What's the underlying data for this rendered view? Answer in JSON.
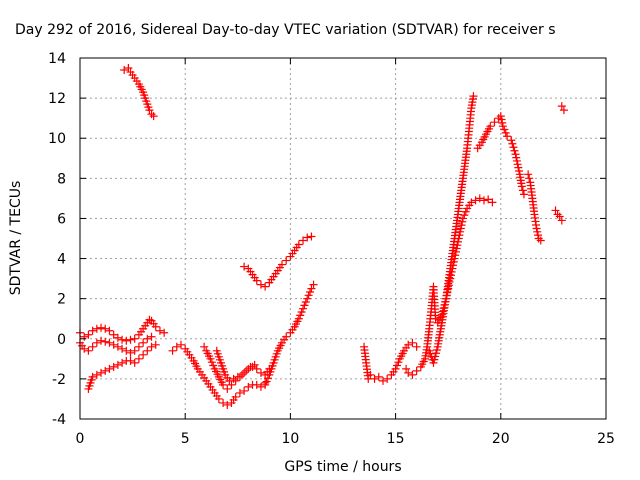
{
  "chart_data": {
    "type": "scatter",
    "title": "Day 292 of 2016, Sidereal Day-to-day VTEC variation (SDTVAR) for receiver s",
    "xlabel": "GPS time / hours",
    "ylabel": "SDTVAR / TECUs",
    "xlim": [
      0,
      25
    ],
    "ylim": [
      -4,
      14
    ],
    "x_ticks": [
      "0",
      "5",
      "10",
      "15",
      "20",
      "25"
    ],
    "y_ticks": [
      "-4",
      "-2",
      "0",
      "2",
      "4",
      "6",
      "8",
      "10",
      "12",
      "14"
    ],
    "x_tick_values": [
      0,
      5,
      10,
      15,
      20,
      25
    ],
    "y_tick_values": [
      -4,
      -2,
      0,
      2,
      4,
      6,
      8,
      10,
      12,
      14
    ],
    "grid": true,
    "marker": "+",
    "color": "#ff0000",
    "series": [
      {
        "values": [
          [
            0.0,
            0.3
          ],
          [
            0.2,
            0.1
          ],
          [
            0.4,
            0.2
          ],
          [
            0.6,
            0.4
          ],
          [
            0.8,
            0.5
          ],
          [
            1.0,
            0.55
          ],
          [
            1.2,
            0.5
          ],
          [
            1.4,
            0.4
          ],
          [
            1.6,
            0.2
          ],
          [
            1.8,
            0.05
          ],
          [
            2.0,
            -0.05
          ],
          [
            2.2,
            -0.1
          ],
          [
            2.4,
            -0.05
          ],
          [
            2.6,
            0.0
          ],
          [
            2.8,
            0.2
          ],
          [
            3.0,
            0.5
          ],
          [
            3.2,
            0.8
          ],
          [
            3.3,
            0.95
          ],
          [
            3.4,
            0.9
          ],
          [
            3.6,
            0.6
          ],
          [
            3.8,
            0.4
          ],
          [
            4.0,
            0.3
          ]
        ]
      },
      {
        "values": [
          [
            0.0,
            -0.2
          ],
          [
            0.2,
            -0.5
          ],
          [
            0.4,
            -0.6
          ],
          [
            0.6,
            -0.4
          ],
          [
            0.8,
            -0.2
          ],
          [
            1.0,
            -0.1
          ],
          [
            1.2,
            -0.15
          ],
          [
            1.4,
            -0.2
          ],
          [
            1.6,
            -0.3
          ],
          [
            1.8,
            -0.4
          ],
          [
            2.0,
            -0.5
          ],
          [
            2.2,
            -0.6
          ],
          [
            2.4,
            -0.7
          ],
          [
            2.6,
            -0.6
          ],
          [
            2.8,
            -0.4
          ],
          [
            3.0,
            -0.2
          ],
          [
            3.2,
            0.0
          ],
          [
            3.4,
            0.1
          ]
        ]
      },
      {
        "values": [
          [
            0.4,
            -2.5
          ],
          [
            0.5,
            -2.2
          ],
          [
            0.6,
            -1.9
          ],
          [
            0.8,
            -1.8
          ],
          [
            1.0,
            -1.7
          ],
          [
            1.2,
            -1.6
          ],
          [
            1.4,
            -1.5
          ],
          [
            1.6,
            -1.4
          ],
          [
            1.8,
            -1.3
          ],
          [
            2.0,
            -1.2
          ],
          [
            2.2,
            -1.1
          ],
          [
            2.4,
            -1.1
          ],
          [
            2.6,
            -1.2
          ],
          [
            2.8,
            -1.0
          ],
          [
            3.0,
            -0.8
          ],
          [
            3.2,
            -0.6
          ],
          [
            3.4,
            -0.4
          ],
          [
            3.6,
            -0.3
          ]
        ]
      },
      {
        "values": [
          [
            2.1,
            13.4
          ],
          [
            2.3,
            13.5
          ],
          [
            2.4,
            13.3
          ],
          [
            2.6,
            13.0
          ],
          [
            2.8,
            12.7
          ],
          [
            3.0,
            12.3
          ],
          [
            3.1,
            12.0
          ],
          [
            3.2,
            11.7
          ],
          [
            3.3,
            11.4
          ],
          [
            3.4,
            11.2
          ],
          [
            3.5,
            11.1
          ]
        ]
      },
      {
        "values": [
          [
            4.4,
            -0.6
          ],
          [
            4.6,
            -0.4
          ],
          [
            4.8,
            -0.3
          ],
          [
            5.0,
            -0.5
          ],
          [
            5.2,
            -0.8
          ],
          [
            5.4,
            -1.1
          ],
          [
            5.6,
            -1.5
          ],
          [
            5.8,
            -1.8
          ],
          [
            6.0,
            -2.1
          ],
          [
            6.2,
            -2.4
          ],
          [
            6.4,
            -2.7
          ],
          [
            6.6,
            -3.0
          ],
          [
            6.8,
            -3.2
          ],
          [
            7.0,
            -3.3
          ],
          [
            7.2,
            -3.2
          ],
          [
            7.4,
            -2.9
          ],
          [
            7.6,
            -2.7
          ],
          [
            7.8,
            -2.6
          ],
          [
            8.0,
            -2.4
          ],
          [
            8.2,
            -2.3
          ],
          [
            8.4,
            -2.3
          ],
          [
            8.6,
            -2.4
          ],
          [
            8.8,
            -2.2
          ]
        ]
      },
      {
        "values": [
          [
            5.9,
            -0.4
          ],
          [
            6.0,
            -0.6
          ],
          [
            6.2,
            -1.0
          ],
          [
            6.4,
            -1.5
          ],
          [
            6.6,
            -1.9
          ],
          [
            6.8,
            -2.3
          ],
          [
            7.0,
            -2.5
          ],
          [
            7.2,
            -2.3
          ],
          [
            7.4,
            -2.1
          ],
          [
            7.6,
            -1.9
          ],
          [
            7.8,
            -1.7
          ],
          [
            8.0,
            -1.5
          ],
          [
            8.2,
            -1.4
          ],
          [
            8.4,
            -1.5
          ],
          [
            8.6,
            -1.7
          ],
          [
            8.8,
            -1.8
          ],
          [
            9.0,
            -1.5
          ]
        ]
      },
      {
        "values": [
          [
            6.5,
            -0.6
          ],
          [
            6.7,
            -1.2
          ],
          [
            6.9,
            -1.8
          ],
          [
            7.1,
            -2.1
          ],
          [
            7.3,
            -2.0
          ],
          [
            7.5,
            -1.9
          ],
          [
            7.7,
            -1.8
          ],
          [
            7.9,
            -1.6
          ],
          [
            8.1,
            -1.4
          ],
          [
            8.3,
            -1.3
          ]
        ]
      },
      {
        "values": [
          [
            7.8,
            3.6
          ],
          [
            8.0,
            3.5
          ],
          [
            8.2,
            3.2
          ],
          [
            8.4,
            2.9
          ],
          [
            8.6,
            2.7
          ],
          [
            8.8,
            2.6
          ],
          [
            9.0,
            2.8
          ],
          [
            9.2,
            3.1
          ],
          [
            9.4,
            3.4
          ],
          [
            9.6,
            3.7
          ],
          [
            9.8,
            3.9
          ],
          [
            10.0,
            4.1
          ],
          [
            10.2,
            4.4
          ],
          [
            10.4,
            4.7
          ],
          [
            10.6,
            4.9
          ],
          [
            10.8,
            5.05
          ],
          [
            11.0,
            5.1
          ]
        ]
      },
      {
        "values": [
          [
            8.8,
            -2.3
          ],
          [
            9.0,
            -1.8
          ],
          [
            9.2,
            -1.2
          ],
          [
            9.4,
            -0.6
          ],
          [
            9.6,
            -0.2
          ],
          [
            9.8,
            0.1
          ],
          [
            10.0,
            0.3
          ],
          [
            10.2,
            0.6
          ],
          [
            10.4,
            1.0
          ],
          [
            10.6,
            1.5
          ],
          [
            10.8,
            2.0
          ],
          [
            11.0,
            2.5
          ],
          [
            11.1,
            2.7
          ]
        ]
      },
      {
        "values": [
          [
            13.5,
            -0.4
          ],
          [
            13.6,
            -1.2
          ],
          [
            13.7,
            -2.0
          ],
          [
            13.8,
            -1.8
          ],
          [
            14.0,
            -2.0
          ],
          [
            14.2,
            -1.9
          ],
          [
            14.4,
            -2.1
          ],
          [
            14.6,
            -2.0
          ],
          [
            14.8,
            -1.8
          ],
          [
            15.0,
            -1.5
          ],
          [
            15.2,
            -1.0
          ],
          [
            15.4,
            -0.6
          ],
          [
            15.6,
            -0.3
          ],
          [
            15.8,
            -0.2
          ],
          [
            16.0,
            -0.4
          ]
        ]
      },
      {
        "values": [
          [
            15.5,
            -1.5
          ],
          [
            15.6,
            -1.7
          ],
          [
            15.8,
            -1.8
          ],
          [
            16.0,
            -1.6
          ],
          [
            16.2,
            -1.4
          ],
          [
            16.4,
            -1.0
          ],
          [
            16.5,
            -0.4
          ],
          [
            16.6,
            0.5
          ],
          [
            16.7,
            1.5
          ],
          [
            16.8,
            2.6
          ],
          [
            16.9,
            1.0
          ],
          [
            17.0,
            0.8
          ],
          [
            17.2,
            1.2
          ],
          [
            17.4,
            2.0
          ],
          [
            17.6,
            3.0
          ],
          [
            17.8,
            4.0
          ],
          [
            18.0,
            5.0
          ],
          [
            18.2,
            6.0
          ],
          [
            18.4,
            6.5
          ],
          [
            18.6,
            6.8
          ],
          [
            18.8,
            6.9
          ],
          [
            19.0,
            7.0
          ],
          [
            19.2,
            6.9
          ],
          [
            19.4,
            6.95
          ],
          [
            19.6,
            6.8
          ]
        ]
      },
      {
        "values": [
          [
            16.6,
            -0.6
          ],
          [
            16.8,
            -1.2
          ],
          [
            17.0,
            -0.4
          ],
          [
            17.2,
            0.8
          ],
          [
            17.4,
            2.0
          ],
          [
            17.6,
            3.5
          ],
          [
            17.8,
            5.0
          ],
          [
            18.0,
            6.5
          ],
          [
            18.2,
            8.0
          ],
          [
            18.4,
            9.5
          ],
          [
            18.5,
            10.5
          ],
          [
            18.6,
            11.5
          ],
          [
            18.7,
            12.1
          ]
        ]
      },
      {
        "values": [
          [
            18.9,
            9.5
          ],
          [
            19.1,
            9.8
          ],
          [
            19.3,
            10.2
          ],
          [
            19.5,
            10.6
          ],
          [
            19.7,
            10.8
          ],
          [
            19.9,
            11.0
          ],
          [
            20.0,
            11.1
          ],
          [
            20.1,
            10.6
          ],
          [
            20.3,
            10.1
          ],
          [
            20.5,
            9.9
          ],
          [
            20.7,
            9.2
          ],
          [
            20.9,
            8.2
          ],
          [
            21.0,
            7.6
          ],
          [
            21.1,
            7.2
          ]
        ]
      },
      {
        "values": [
          [
            21.3,
            8.2
          ],
          [
            21.4,
            7.8
          ],
          [
            21.5,
            7.0
          ],
          [
            21.6,
            6.2
          ],
          [
            21.7,
            5.5
          ],
          [
            21.8,
            5.0
          ],
          [
            21.9,
            4.9
          ]
        ]
      },
      {
        "values": [
          [
            22.6,
            6.4
          ],
          [
            22.7,
            6.2
          ],
          [
            22.8,
            6.1
          ],
          [
            22.9,
            5.9
          ]
        ]
      },
      {
        "values": [
          [
            22.9,
            11.6
          ],
          [
            23.0,
            11.4
          ]
        ]
      }
    ]
  }
}
